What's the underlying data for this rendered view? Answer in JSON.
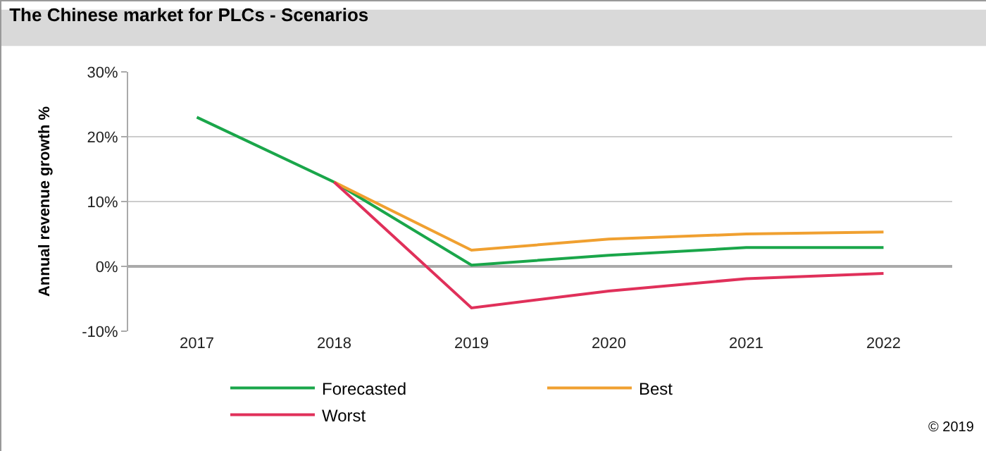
{
  "chart_data": {
    "type": "line",
    "title": "The Chinese market for PLCs - Scenarios",
    "ylabel": "Annual revenue growth %",
    "categories": [
      "2017",
      "2018",
      "2019",
      "2020",
      "2021",
      "2022"
    ],
    "series": [
      {
        "name": "Forecasted",
        "color": "#1aa64a",
        "values": [
          23,
          13,
          0.2,
          1.7,
          2.9,
          2.9
        ]
      },
      {
        "name": "Best",
        "color": "#f0a030",
        "values": [
          null,
          13,
          2.5,
          4.2,
          5.0,
          5.3
        ]
      },
      {
        "name": "Worst",
        "color": "#e0305a",
        "values": [
          null,
          13,
          -6.4,
          -3.8,
          -1.9,
          -1.1
        ]
      }
    ],
    "ylim": [
      -10,
      30
    ],
    "yticks": [
      {
        "value": -10,
        "label": "-10%"
      },
      {
        "value": 0,
        "label": "0%"
      },
      {
        "value": 10,
        "label": "10%"
      },
      {
        "value": 20,
        "label": "20%"
      },
      {
        "value": 30,
        "label": "30%"
      }
    ],
    "grid": "y",
    "legend": "bottom",
    "marker": "none",
    "line_style": "solid",
    "annotations": [
      "© 2019"
    ]
  }
}
